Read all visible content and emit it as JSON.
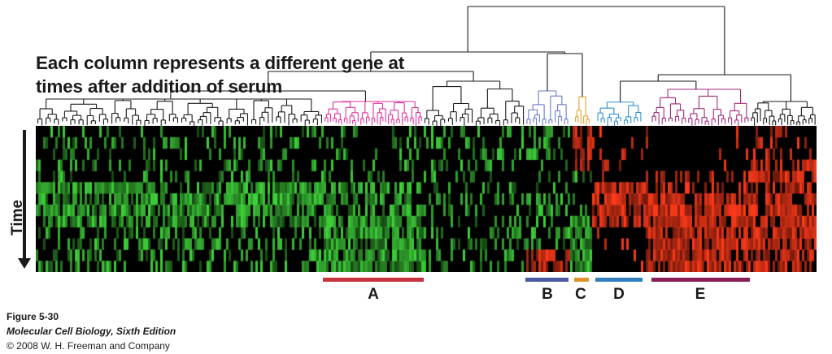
{
  "heading": {
    "line1": "Each column represents a different gene at",
    "line2": "times after addition of serum"
  },
  "axis": {
    "time_label": "Time"
  },
  "clusters": [
    {
      "letter": "A",
      "color": "#c8323c"
    },
    {
      "letter": "B",
      "color": "#4a5aa0"
    },
    {
      "letter": "C",
      "color": "#e0932a"
    },
    {
      "letter": "D",
      "color": "#2f7fbf"
    },
    {
      "letter": "E",
      "color": "#8a1e5a"
    }
  ],
  "dendrogram_colors": {
    "default": "#1a1a1a",
    "A": "#e0329a",
    "B": "#6a7ac8",
    "C": "#e8a030",
    "D": "#2f8fd0",
    "E": "#a02a7a"
  },
  "heatmap_colors": {
    "background": "#000000",
    "induced": "#ff3a1a",
    "repressed": "#3fd23a"
  },
  "caption": {
    "figure": "Figure 5-30",
    "book": "Molecular Cell Biology, Sixth Edition",
    "copyright": "© 2008 W. H. Freeman and Company"
  }
}
